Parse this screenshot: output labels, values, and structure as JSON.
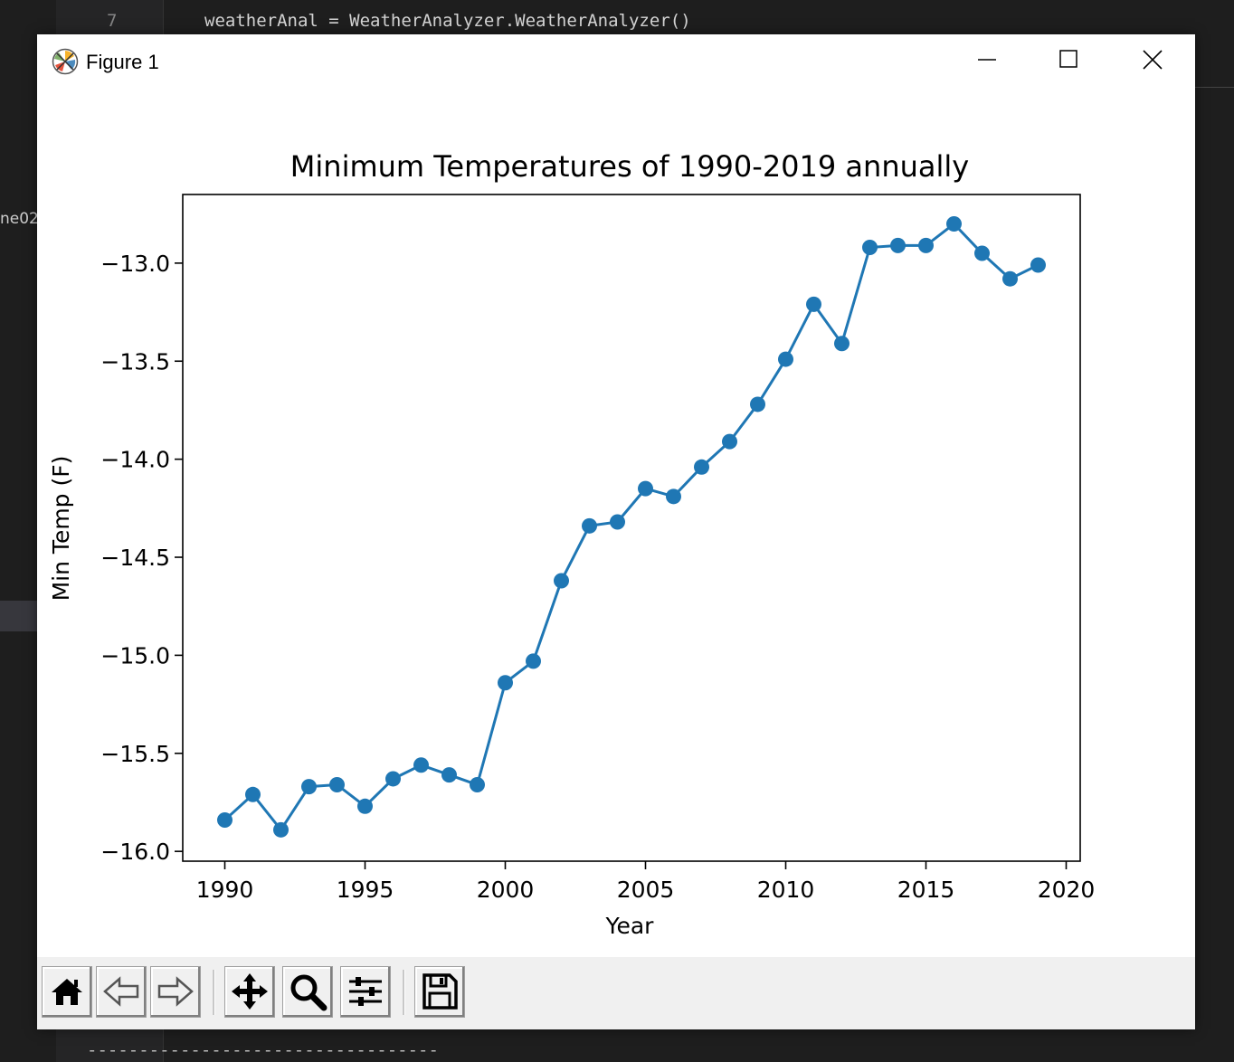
{
  "editor": {
    "line_number": "7",
    "code_line": "weatherAnal = WeatherAnalyzer.WeatherAnalyzer()",
    "side_fragment": "ne02",
    "dashes": "----------------------------------"
  },
  "window": {
    "title": "Figure 1",
    "controls": [
      "minimize",
      "maximize",
      "close"
    ]
  },
  "toolbar": {
    "buttons": [
      {
        "name": "home",
        "icon": "home-icon"
      },
      {
        "name": "back",
        "icon": "arrow-left-icon"
      },
      {
        "name": "forward",
        "icon": "arrow-right-icon"
      },
      {
        "name": "pan",
        "icon": "move-icon"
      },
      {
        "name": "zoom",
        "icon": "magnifier-icon"
      },
      {
        "name": "configure-subplots",
        "icon": "sliders-icon"
      },
      {
        "name": "save",
        "icon": "floppy-disk-icon"
      }
    ]
  },
  "chart_data": {
    "type": "line",
    "title": "Minimum Temperatures of 1990-2019 annually",
    "xlabel": "Year",
    "ylabel": "Min Temp (F)",
    "xlim": [
      1988.5,
      2020.5
    ],
    "ylim": [
      -16.05,
      -12.65
    ],
    "xticks": [
      1990,
      1995,
      2000,
      2005,
      2010,
      2015,
      2020
    ],
    "yticks": [
      -13.0,
      -13.5,
      -14.0,
      -14.5,
      -15.0,
      -15.5,
      -16.0
    ],
    "ytick_labels": [
      "−13.0",
      "−13.5",
      "−14.0",
      "−14.5",
      "−15.0",
      "−15.5",
      "−16.0"
    ],
    "grid": false,
    "marker": "circle",
    "color": "#1f77b4",
    "series": [
      {
        "x": [
          1990,
          1991,
          1992,
          1993,
          1994,
          1995,
          1996,
          1997,
          1998,
          1999,
          2000,
          2001,
          2002,
          2003,
          2004,
          2005,
          2006,
          2007,
          2008,
          2009,
          2010,
          2011,
          2012,
          2013,
          2014,
          2015,
          2016,
          2017,
          2018,
          2019
        ],
        "values": [
          -15.84,
          -15.71,
          -15.89,
          -15.67,
          -15.66,
          -15.77,
          -15.63,
          -15.56,
          -15.61,
          -15.66,
          -15.14,
          -15.03,
          -14.62,
          -14.34,
          -14.32,
          -14.15,
          -14.19,
          -14.04,
          -13.91,
          -13.72,
          -13.49,
          -13.21,
          -13.41,
          -12.92,
          -12.91,
          -12.91,
          -12.8,
          -12.95,
          -13.08,
          -13.01
        ]
      }
    ]
  }
}
